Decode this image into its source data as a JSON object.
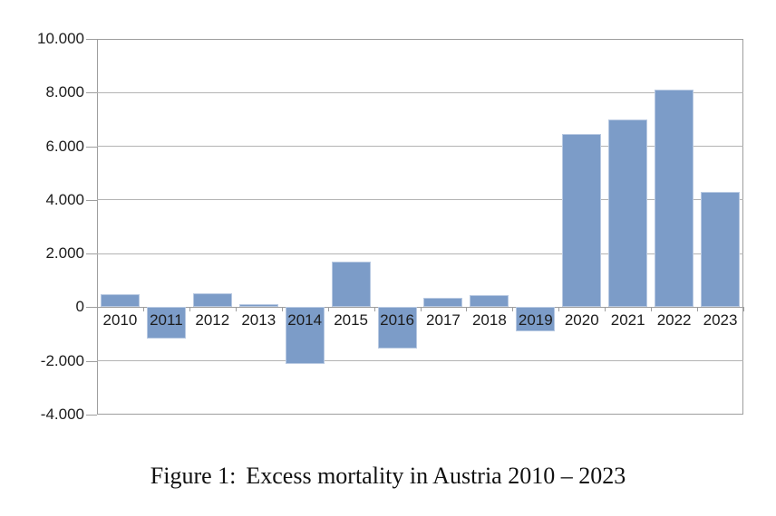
{
  "figure": {
    "caption_label": "Figure 1:",
    "caption_text": "Excess mortality in Austria 2010 – 2023"
  },
  "chart_data": {
    "type": "bar",
    "title": "Excess mortality in Austria 2010 – 2023",
    "categories": [
      "2010",
      "2011",
      "2012",
      "2013",
      "2014",
      "2015",
      "2016",
      "2017",
      "2018",
      "2019",
      "2020",
      "2021",
      "2022",
      "2023"
    ],
    "values": [
      500,
      -1150,
      520,
      100,
      -2100,
      1700,
      -1550,
      350,
      450,
      -900,
      6450,
      7000,
      8100,
      4300
    ],
    "xlabel": "",
    "ylabel": "",
    "ylim": [
      -4000,
      10000
    ],
    "ytick_step": 2000,
    "ytick_labels": [
      "10.000",
      "8.000",
      "6.000",
      "4.000",
      "2.000",
      "0",
      "-2.000",
      "-4.000"
    ],
    "grid": true,
    "legend_position": "none",
    "colors": {
      "bar_fill": "#7C9CC8",
      "bar_edge": "#B8C9E2",
      "gridline": "#B3B3B3",
      "axis": "#9E9E9E",
      "tick_text": "#1C1C1C",
      "caption_text": "#111111",
      "background": "#FFFFFF"
    }
  }
}
